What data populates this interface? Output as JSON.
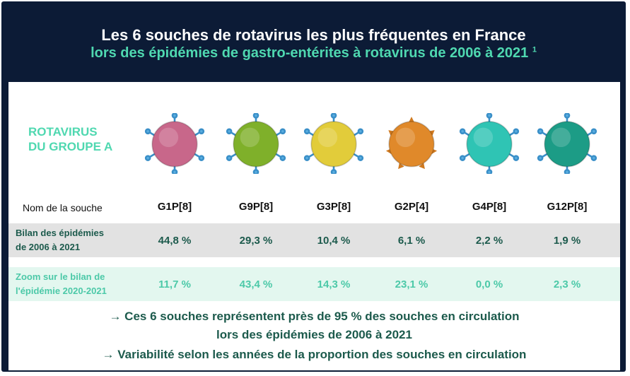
{
  "header": {
    "title": "Les 6 souches de rotavirus les plus fréquentes en France",
    "subtitle": "lors des épidémies de gastro-entérites à rotavirus de 2006 à 2021",
    "footnote": "1"
  },
  "group_label_line1": "ROTAVIRUS",
  "group_label_line2": "DU GROUPE A",
  "name_label": "Nom de la souche",
  "strains": [
    {
      "name": "G1P[8]",
      "color": "#c8678a",
      "bilan": "44,8 %",
      "zoom": "11,7 %"
    },
    {
      "name": "G9P[8]",
      "color": "#7fb02a",
      "bilan": "29,3 %",
      "zoom": "43,4 %"
    },
    {
      "name": "G3P[8]",
      "color": "#e2cc3a",
      "bilan": "10,4 %",
      "zoom": "14,3 %"
    },
    {
      "name": "G2P[4]",
      "color": "#e0892a",
      "bilan": "6,1 %",
      "zoom": "23,1 %"
    },
    {
      "name": "G4P[8]",
      "color": "#2fc4b4",
      "bilan": "2,2 %",
      "zoom": "0,0 %"
    },
    {
      "name": "G12P[8]",
      "color": "#1c9c86",
      "bilan": "1,9 %",
      "zoom": "2,3 %"
    }
  ],
  "rows": {
    "bilan_label_line1": "Bilan des épidémies",
    "bilan_label_line2": "de 2006 à 2021",
    "zoom_label_line1": "Zoom sur le bilan de",
    "zoom_label_line2": "l'épidémie 2020-2021"
  },
  "conclusions": {
    "line1": "→ Ces 6 souches représentent près de 95 % des souches en circulation",
    "line2": "lors des épidémies de 2006 à 2021",
    "line3": "→ Variabilité selon les années de la proportion des souches en circulation"
  },
  "icons": {
    "virus": "rotavirus-particle-icon"
  }
}
